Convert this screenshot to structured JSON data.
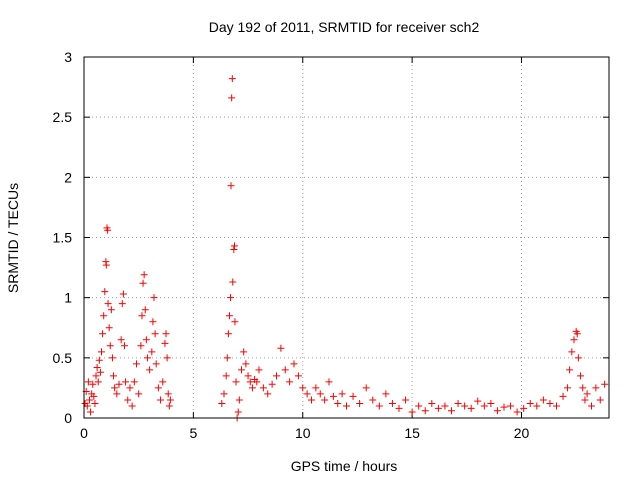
{
  "chart_data": {
    "type": "scatter",
    "title": "Day 192 of 2011, SRMTID for receiver sch2",
    "xlabel": "GPS time / hours",
    "ylabel": "SRMTID / TECUs",
    "xlim": [
      0,
      24
    ],
    "ylim": [
      0,
      3
    ],
    "x_ticks": [
      "0",
      "5",
      "10",
      "15",
      "20"
    ],
    "y_ticks": [
      "0",
      "0.5",
      "1",
      "1.5",
      "2",
      "2.5",
      "3"
    ],
    "grid": true,
    "marker": "+",
    "color": "#ff0000",
    "series": [
      {
        "points": [
          [
            0.05,
            0.12
          ],
          [
            0.1,
            0.22
          ],
          [
            0.15,
            0.1
          ],
          [
            0.2,
            0.3
          ],
          [
            0.25,
            0.15
          ],
          [
            0.3,
            0.05
          ],
          [
            0.35,
            0.2
          ],
          [
            0.4,
            0.28
          ],
          [
            0.45,
            0.18
          ],
          [
            0.5,
            0.12
          ],
          [
            0.55,
            0.35
          ],
          [
            0.6,
            0.42
          ],
          [
            0.65,
            0.3
          ],
          [
            0.7,
            0.48
          ],
          [
            0.75,
            0.38
          ],
          [
            0.8,
            0.55
          ],
          [
            0.85,
            0.7
          ],
          [
            0.9,
            0.85
          ],
          [
            0.95,
            1.05
          ],
          [
            1.0,
            1.3
          ],
          [
            1.02,
            1.27
          ],
          [
            1.05,
            1.58
          ],
          [
            1.08,
            1.56
          ],
          [
            1.1,
            0.95
          ],
          [
            1.15,
            0.75
          ],
          [
            1.2,
            0.6
          ],
          [
            1.25,
            0.9
          ],
          [
            1.3,
            0.5
          ],
          [
            1.35,
            0.35
          ],
          [
            1.4,
            0.25
          ],
          [
            1.5,
            0.2
          ],
          [
            1.6,
            0.28
          ],
          [
            1.7,
            0.65
          ],
          [
            1.75,
            0.95
          ],
          [
            1.8,
            1.03
          ],
          [
            1.85,
            0.6
          ],
          [
            1.9,
            0.3
          ],
          [
            2.0,
            0.15
          ],
          [
            2.1,
            0.25
          ],
          [
            2.2,
            0.1
          ],
          [
            2.3,
            0.3
          ],
          [
            2.4,
            0.45
          ],
          [
            2.5,
            0.2
          ],
          [
            2.6,
            0.6
          ],
          [
            2.65,
            0.85
          ],
          [
            2.7,
            1.12
          ],
          [
            2.75,
            1.19
          ],
          [
            2.8,
            0.9
          ],
          [
            2.85,
            0.65
          ],
          [
            2.9,
            0.5
          ],
          [
            3.0,
            0.4
          ],
          [
            3.1,
            0.55
          ],
          [
            3.15,
            0.8
          ],
          [
            3.2,
            1.0
          ],
          [
            3.25,
            0.7
          ],
          [
            3.3,
            0.45
          ],
          [
            3.4,
            0.25
          ],
          [
            3.5,
            0.15
          ],
          [
            3.6,
            0.3
          ],
          [
            3.7,
            0.62
          ],
          [
            3.75,
            0.7
          ],
          [
            3.8,
            0.5
          ],
          [
            3.85,
            0.2
          ],
          [
            3.9,
            0.1
          ],
          [
            3.95,
            0.15
          ],
          [
            6.3,
            0.12
          ],
          [
            6.4,
            0.2
          ],
          [
            6.5,
            0.35
          ],
          [
            6.55,
            0.5
          ],
          [
            6.6,
            0.7
          ],
          [
            6.65,
            0.85
          ],
          [
            6.7,
            1.0
          ],
          [
            6.72,
            1.93
          ],
          [
            6.75,
            2.66
          ],
          [
            6.78,
            2.82
          ],
          [
            6.8,
            1.13
          ],
          [
            6.85,
            1.4
          ],
          [
            6.88,
            1.43
          ],
          [
            6.9,
            0.8
          ],
          [
            6.95,
            0.3
          ],
          [
            7.0,
            0.0
          ],
          [
            7.05,
            0.05
          ],
          [
            7.1,
            0.15
          ],
          [
            7.2,
            0.4
          ],
          [
            7.3,
            0.55
          ],
          [
            7.4,
            0.45
          ],
          [
            7.5,
            0.35
          ],
          [
            7.6,
            0.3
          ],
          [
            7.7,
            0.25
          ],
          [
            7.8,
            0.32
          ],
          [
            7.9,
            0.3
          ],
          [
            8.0,
            0.4
          ],
          [
            8.2,
            0.25
          ],
          [
            8.4,
            0.2
          ],
          [
            8.6,
            0.28
          ],
          [
            8.8,
            0.35
          ],
          [
            9.0,
            0.58
          ],
          [
            9.2,
            0.4
          ],
          [
            9.4,
            0.3
          ],
          [
            9.6,
            0.45
          ],
          [
            9.8,
            0.35
          ],
          [
            10.0,
            0.25
          ],
          [
            10.2,
            0.2
          ],
          [
            10.4,
            0.15
          ],
          [
            10.6,
            0.25
          ],
          [
            10.8,
            0.2
          ],
          [
            11.0,
            0.15
          ],
          [
            11.2,
            0.3
          ],
          [
            11.4,
            0.18
          ],
          [
            11.6,
            0.12
          ],
          [
            11.8,
            0.2
          ],
          [
            12.0,
            0.1
          ],
          [
            12.3,
            0.18
          ],
          [
            12.6,
            0.12
          ],
          [
            12.9,
            0.25
          ],
          [
            13.2,
            0.15
          ],
          [
            13.5,
            0.1
          ],
          [
            13.8,
            0.2
          ],
          [
            14.1,
            0.12
          ],
          [
            14.4,
            0.08
          ],
          [
            14.7,
            0.15
          ],
          [
            15.0,
            0.05
          ],
          [
            15.3,
            0.1
          ],
          [
            15.6,
            0.06
          ],
          [
            15.9,
            0.12
          ],
          [
            16.2,
            0.08
          ],
          [
            16.5,
            0.1
          ],
          [
            16.8,
            0.06
          ],
          [
            17.1,
            0.12
          ],
          [
            17.4,
            0.1
          ],
          [
            17.7,
            0.08
          ],
          [
            18.0,
            0.14
          ],
          [
            18.3,
            0.1
          ],
          [
            18.6,
            0.12
          ],
          [
            18.9,
            0.06
          ],
          [
            19.2,
            0.09
          ],
          [
            19.5,
            0.1
          ],
          [
            19.8,
            0.05
          ],
          [
            20.1,
            0.08
          ],
          [
            20.4,
            0.12
          ],
          [
            20.7,
            0.1
          ],
          [
            21.0,
            0.15
          ],
          [
            21.3,
            0.12
          ],
          [
            21.6,
            0.1
          ],
          [
            21.9,
            0.18
          ],
          [
            22.1,
            0.25
          ],
          [
            22.2,
            0.4
          ],
          [
            22.3,
            0.55
          ],
          [
            22.4,
            0.65
          ],
          [
            22.5,
            0.72
          ],
          [
            22.55,
            0.7
          ],
          [
            22.6,
            0.5
          ],
          [
            22.7,
            0.35
          ],
          [
            22.8,
            0.25
          ],
          [
            22.9,
            0.15
          ],
          [
            23.0,
            0.2
          ],
          [
            23.2,
            0.1
          ],
          [
            23.4,
            0.25
          ],
          [
            23.6,
            0.15
          ],
          [
            23.8,
            0.28
          ]
        ]
      }
    ]
  }
}
